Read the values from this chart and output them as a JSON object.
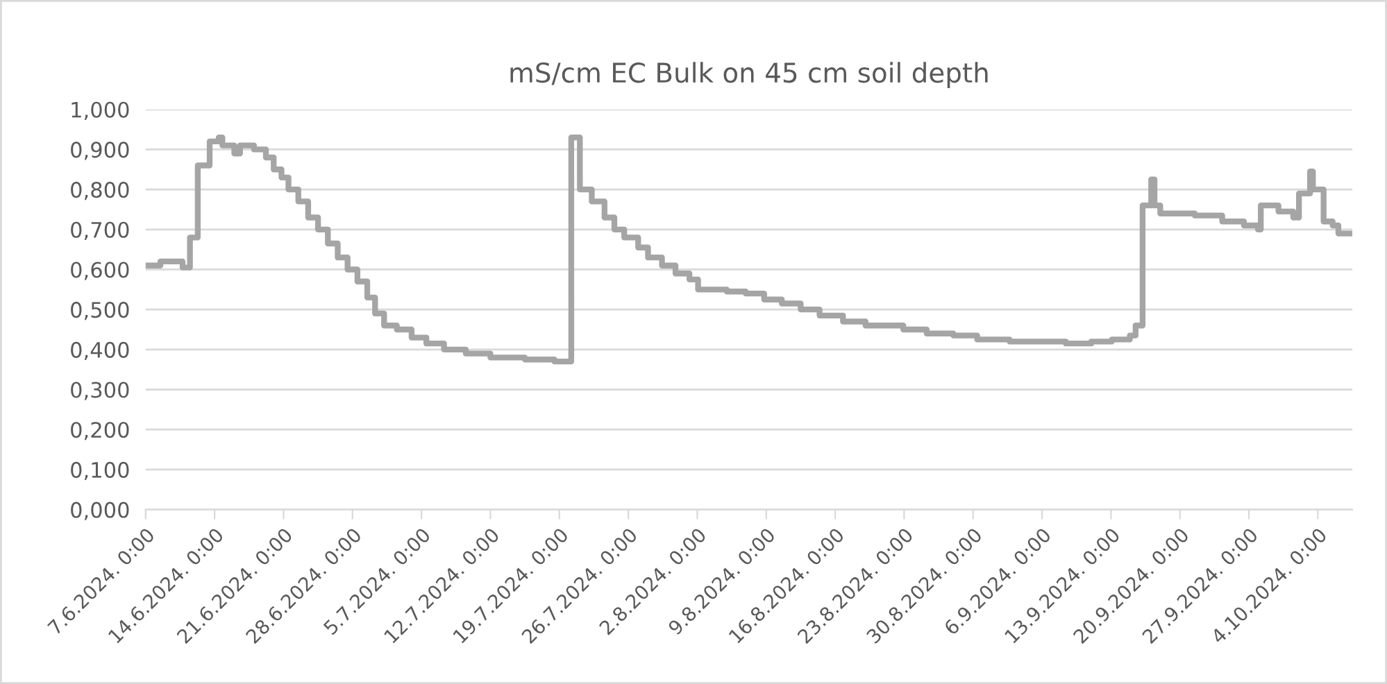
{
  "chart_data": {
    "type": "step",
    "title": "mS/cm EC Bulk on 45 cm soil depth",
    "x": [
      "2024-06-07T00:00",
      "2024-06-08T12:00",
      "2024-06-10T18:00",
      "2024-06-11T12:00",
      "2024-06-12T07:00",
      "2024-06-13T12:00",
      "2024-06-14T10:00",
      "2024-06-14T19:00",
      "2024-06-16T00:00",
      "2024-06-16T14:00",
      "2024-06-18T00:00",
      "2024-06-19T05:00",
      "2024-06-20T00:00",
      "2024-06-20T19:00",
      "2024-06-21T12:00",
      "2024-06-22T12:00",
      "2024-06-23T12:00",
      "2024-06-24T12:00",
      "2024-06-25T12:00",
      "2024-06-26T12:00",
      "2024-06-27T12:00",
      "2024-06-28T12:00",
      "2024-06-29T12:00",
      "2024-06-30T07:00",
      "2024-07-01T05:00",
      "2024-07-02T12:00",
      "2024-07-04T00:00",
      "2024-07-05T12:00",
      "2024-07-07T07:00",
      "2024-07-09T12:00",
      "2024-07-12T00:00",
      "2024-07-15T12:00",
      "2024-07-18T12:00",
      "2024-07-20T05:00",
      "2024-07-21T02:00",
      "2024-07-22T07:00",
      "2024-07-23T14:00",
      "2024-07-24T14:00",
      "2024-07-25T14:00",
      "2024-07-27T00:00",
      "2024-07-28T00:00",
      "2024-07-29T10:00",
      "2024-07-30T19:00",
      "2024-08-01T05:00",
      "2024-08-02T02:00",
      "2024-08-05T00:00",
      "2024-08-06T22:00",
      "2024-08-08T19:00",
      "2024-08-10T14:00",
      "2024-08-12T12:00",
      "2024-08-14T10:00",
      "2024-08-16T19:00",
      "2024-08-19T02:00",
      "2024-08-22T22:00",
      "2024-08-25T07:00",
      "2024-08-28T00:00",
      "2024-08-30T10:00",
      "2024-09-02T17:00",
      "2024-09-08T10:00",
      "2024-09-11T00:00",
      "2024-09-13T02:00",
      "2024-09-14T22:00",
      "2024-09-15T12:00",
      "2024-09-16T05:00",
      "2024-09-17T02:00",
      "2024-09-17T10:00",
      "2024-09-18T00:00",
      "2024-09-21T12:00",
      "2024-09-24T07:00",
      "2024-09-26T12:00",
      "2024-09-27T22:00",
      "2024-09-28T05:00",
      "2024-09-30T00:00",
      "2024-10-01T12:00",
      "2024-10-02T02:00",
      "2024-10-03T05:00",
      "2024-10-03T12:00",
      "2024-10-04T14:00",
      "2024-10-05T12:00",
      "2024-10-06T02:00",
      "2024-10-07T07:00"
    ],
    "series": [
      {
        "color": "#a5a5a5",
        "values": [
          0.61,
          0.62,
          0.605,
          0.68,
          0.86,
          0.92,
          0.93,
          0.91,
          0.89,
          0.91,
          0.9,
          0.88,
          0.85,
          0.83,
          0.8,
          0.77,
          0.73,
          0.7,
          0.665,
          0.63,
          0.6,
          0.57,
          0.53,
          0.49,
          0.46,
          0.45,
          0.43,
          0.415,
          0.4,
          0.39,
          0.38,
          0.375,
          0.37,
          0.93,
          0.8,
          0.77,
          0.73,
          0.7,
          0.68,
          0.655,
          0.63,
          0.61,
          0.59,
          0.575,
          0.55,
          0.545,
          0.54,
          0.525,
          0.515,
          0.5,
          0.485,
          0.47,
          0.46,
          0.45,
          0.44,
          0.435,
          0.425,
          0.42,
          0.415,
          0.42,
          0.425,
          0.435,
          0.46,
          0.76,
          0.825,
          0.76,
          0.74,
          0.735,
          0.72,
          0.71,
          0.7,
          0.76,
          0.745,
          0.73,
          0.79,
          0.845,
          0.8,
          0.72,
          0.71,
          0.69,
          0.69
        ]
      }
    ],
    "xlim": [
      "2024-06-07T00:00",
      "2024-10-07T12:00"
    ],
    "xticks": [
      {
        "value": "2024-06-07",
        "label": "7.6.2024. 0:00"
      },
      {
        "value": "2024-06-14",
        "label": "14.6.2024. 0:00"
      },
      {
        "value": "2024-06-21",
        "label": "21.6.2024. 0:00"
      },
      {
        "value": "2024-06-28",
        "label": "28.6.2024. 0:00"
      },
      {
        "value": "2024-07-05",
        "label": "5.7.2024. 0:00"
      },
      {
        "value": "2024-07-12",
        "label": "12.7.2024. 0:00"
      },
      {
        "value": "2024-07-19",
        "label": "19.7.2024. 0:00"
      },
      {
        "value": "2024-07-26",
        "label": "26.7.2024. 0:00"
      },
      {
        "value": "2024-08-02",
        "label": "2.8.2024. 0:00"
      },
      {
        "value": "2024-08-09",
        "label": "9.8.2024. 0:00"
      },
      {
        "value": "2024-08-16",
        "label": "16.8.2024. 0:00"
      },
      {
        "value": "2024-08-23",
        "label": "23.8.2024. 0:00"
      },
      {
        "value": "2024-08-30",
        "label": "30.8.2024. 0:00"
      },
      {
        "value": "2024-09-06",
        "label": "6.9.2024. 0:00"
      },
      {
        "value": "2024-09-13",
        "label": "13.9.2024. 0:00"
      },
      {
        "value": "2024-09-20",
        "label": "20.9.2024. 0:00"
      },
      {
        "value": "2024-09-27",
        "label": "27.9.2024. 0:00"
      },
      {
        "value": "2024-10-04",
        "label": "4.10.2024. 0:00"
      }
    ],
    "ylim": [
      0,
      1
    ],
    "yticks": [
      {
        "value": 0,
        "label": "0,000"
      },
      {
        "value": 0.1,
        "label": "0,100"
      },
      {
        "value": 0.2,
        "label": "0,200"
      },
      {
        "value": 0.3,
        "label": "0,300"
      },
      {
        "value": 0.4,
        "label": "0,400"
      },
      {
        "value": 0.5,
        "label": "0,500"
      },
      {
        "value": 0.6,
        "label": "0,600"
      },
      {
        "value": 0.7,
        "label": "0,700"
      },
      {
        "value": 0.8,
        "label": "0,800"
      },
      {
        "value": 0.9,
        "label": "0,900"
      },
      {
        "value": 1,
        "label": "1,000"
      }
    ],
    "grid": "y",
    "line_style": "solid"
  }
}
